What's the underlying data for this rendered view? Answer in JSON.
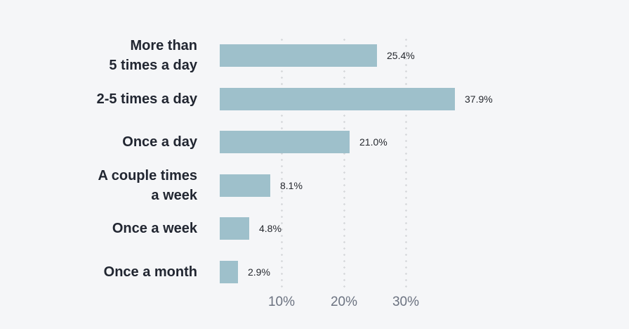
{
  "page": {
    "background_color": "#f5f6f8"
  },
  "chart_data": {
    "type": "bar",
    "orientation": "horizontal",
    "title": "",
    "xlabel": "",
    "ylabel": "",
    "categories": [
      "More than\n5 times a day",
      "2-5 times a day",
      "Once a day",
      "A couple times\na week",
      "Once a week",
      "Once a month"
    ],
    "values": [
      25.4,
      37.9,
      21.0,
      8.1,
      4.8,
      2.9
    ],
    "value_labels": [
      "25.4%",
      "37.9%",
      "21.0%",
      "8.1%",
      "4.8%",
      "2.9%"
    ],
    "x_ticks": [
      "10%",
      "20%",
      "30%"
    ],
    "x_tick_values": [
      10,
      20,
      30
    ],
    "xlim": [
      0,
      33
    ],
    "grid": "dotted-vertical",
    "legend": "none",
    "colors": {
      "bar": "#9ec0cb",
      "category_label": "#212631",
      "value_label": "#25282e",
      "tick_label": "#6b7280",
      "grid_dots": "#d7d9dc",
      "background": "#f5f6f8"
    }
  }
}
